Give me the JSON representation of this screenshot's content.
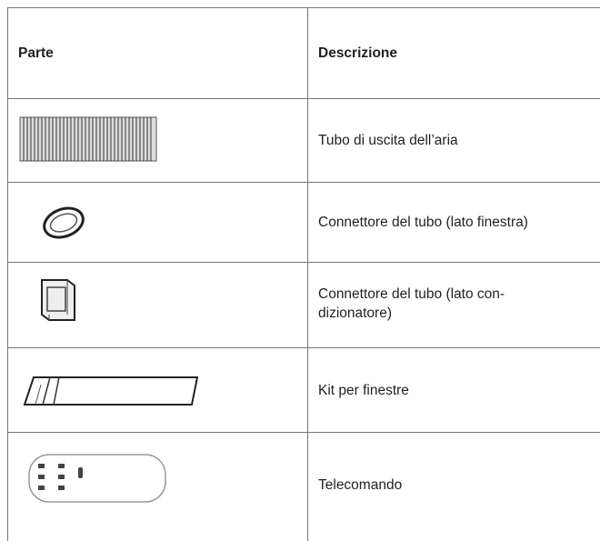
{
  "table": {
    "header": [
      "Parte",
      "Descrizione"
    ],
    "rows": [
      {
        "description": [
          "Tubo di uscita dell’aria"
        ]
      },
      {
        "description": [
          "Connettore del tubo (lato finestra)"
        ]
      },
      {
        "description": [
          "Connettore del tubo (lato con-",
          "dizionatore)"
        ]
      },
      {
        "description": [
          "Kit per finestre"
        ]
      },
      {
        "description": [
          "Telecomando"
        ]
      }
    ]
  }
}
